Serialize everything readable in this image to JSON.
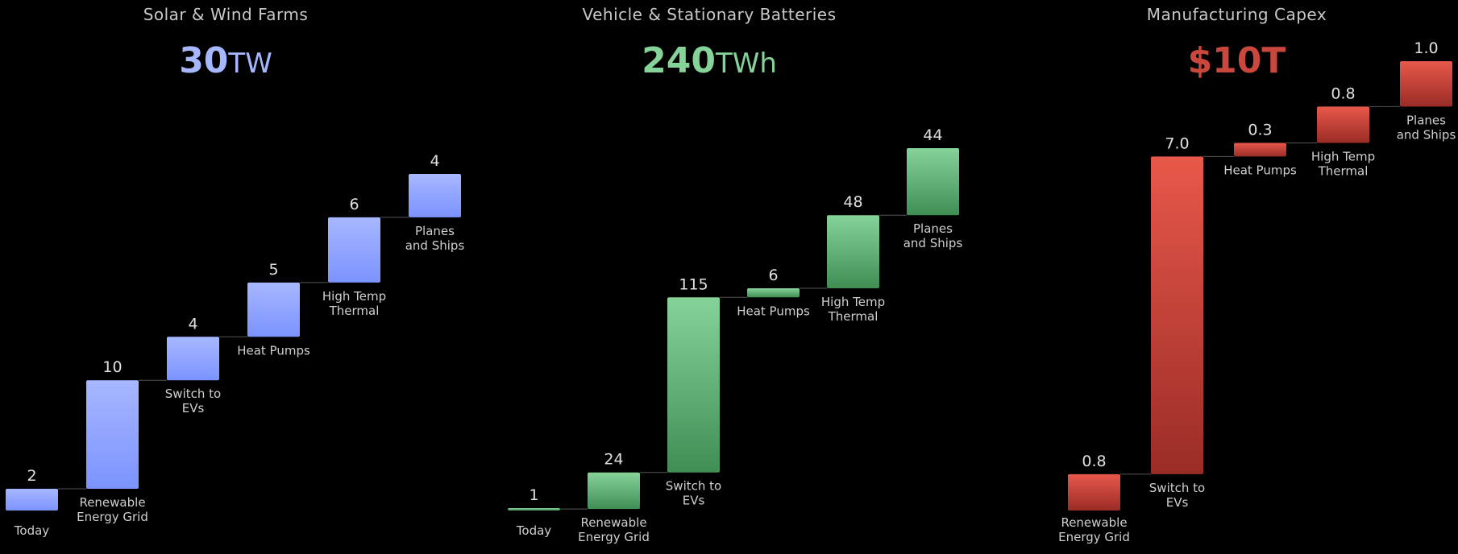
{
  "chart_data": [
    {
      "type": "bar",
      "subtype": "waterfall",
      "title": "Solar & Wind Farms",
      "total": {
        "number": "30",
        "unit": "TW"
      },
      "accent": "#a7b7ff",
      "accent_dark": "#7b93ff",
      "categories": [
        "Today",
        "Renewable Energy Grid",
        "Switch to EVs",
        "Heat Pumps",
        "High Temp Thermal",
        "Planes and Ships"
      ],
      "category_lines": [
        [
          "Today"
        ],
        [
          "Renewable",
          "Energy Grid"
        ],
        [
          "Switch to",
          "EVs"
        ],
        [
          "Heat Pumps"
        ],
        [
          "High Temp",
          "Thermal"
        ],
        [
          "Planes",
          "and Ships"
        ]
      ],
      "values": [
        2,
        10,
        4,
        5,
        6,
        4
      ],
      "value_labels": [
        "2",
        "10",
        "4",
        "5",
        "6",
        "4"
      ]
    },
    {
      "type": "bar",
      "subtype": "waterfall",
      "title": "Vehicle & Stationary Batteries",
      "total": {
        "number": "240",
        "unit": "TWh"
      },
      "accent": "#86d39a",
      "accent_dark": "#3f8f55",
      "categories": [
        "Today",
        "Renewable Energy Grid",
        "Switch to EVs",
        "Heat Pumps",
        "High Temp Thermal",
        "Planes and Ships"
      ],
      "category_lines": [
        [
          "Today"
        ],
        [
          "Renewable",
          "Energy Grid"
        ],
        [
          "Switch to",
          "EVs"
        ],
        [
          "Heat Pumps"
        ],
        [
          "High Temp",
          "Thermal"
        ],
        [
          "Planes",
          "and Ships"
        ]
      ],
      "values": [
        1,
        24,
        115,
        6,
        48,
        44
      ],
      "value_labels": [
        "1",
        "24",
        "115",
        "6",
        "48",
        "44"
      ]
    },
    {
      "type": "bar",
      "subtype": "waterfall",
      "title": "Manufacturing Capex",
      "total": {
        "number": "$10T",
        "unit": ""
      },
      "accent": "#e8584a",
      "accent_dark": "#9a2c26",
      "categories": [
        "Renewable Energy Grid",
        "Switch to EVs",
        "Heat Pumps",
        "High Temp Thermal",
        "Planes and Ships"
      ],
      "category_lines": [
        [
          "Renewable",
          "Energy Grid"
        ],
        [
          "Switch to",
          "EVs"
        ],
        [
          "Heat Pumps"
        ],
        [
          "High Temp",
          "Thermal"
        ],
        [
          "Planes",
          "and Ships"
        ]
      ],
      "values": [
        0.8,
        7.0,
        0.3,
        0.8,
        1.0
      ],
      "value_labels": [
        "0.8",
        "7.0",
        "0.3",
        "0.8",
        "1.0"
      ]
    }
  ]
}
